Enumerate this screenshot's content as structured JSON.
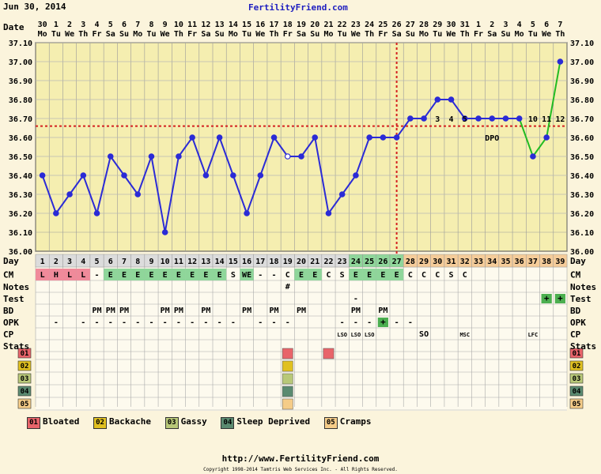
{
  "header": {
    "date": "Jun 30, 2014",
    "site": "FertilityFriend.com"
  },
  "footer": {
    "url": "http://www.FertilityFriend.com",
    "copyright": "Copyright 1998-2014 Tamtris Web Services Inc. - All Rights Reserved."
  },
  "colors": {
    "background": "#fbf4dc",
    "temp_line": "#2b2bd6",
    "post_line": "#22bb22",
    "coverline": "#d42020",
    "ovulation": "#d42020"
  },
  "row_labels": [
    "Day",
    "CM",
    "Notes",
    "Test",
    "BD",
    "OPK",
    "CP",
    "Stats"
  ],
  "days": [
    {
      "date": "30",
      "dow": "Mo"
    },
    {
      "date": "1",
      "dow": "Tu"
    },
    {
      "date": "2",
      "dow": "We"
    },
    {
      "date": "3",
      "dow": "Th"
    },
    {
      "date": "4",
      "dow": "Fr"
    },
    {
      "date": "5",
      "dow": "Sa"
    },
    {
      "date": "6",
      "dow": "Su"
    },
    {
      "date": "7",
      "dow": "Mo"
    },
    {
      "date": "8",
      "dow": "Tu"
    },
    {
      "date": "9",
      "dow": "We"
    },
    {
      "date": "10",
      "dow": "Th"
    },
    {
      "date": "11",
      "dow": "Fr"
    },
    {
      "date": "12",
      "dow": "Sa"
    },
    {
      "date": "13",
      "dow": "Su"
    },
    {
      "date": "14",
      "dow": "Mo"
    },
    {
      "date": "15",
      "dow": "Tu"
    },
    {
      "date": "16",
      "dow": "We"
    },
    {
      "date": "17",
      "dow": "Th"
    },
    {
      "date": "18",
      "dow": "Fr"
    },
    {
      "date": "19",
      "dow": "Sa"
    },
    {
      "date": "20",
      "dow": "Su"
    },
    {
      "date": "21",
      "dow": "Mo"
    },
    {
      "date": "22",
      "dow": "Tu"
    },
    {
      "date": "23",
      "dow": "We"
    },
    {
      "date": "24",
      "dow": "Th"
    },
    {
      "date": "25",
      "dow": "Fr"
    },
    {
      "date": "26",
      "dow": "Sa"
    },
    {
      "date": "27",
      "dow": "Su"
    },
    {
      "date": "28",
      "dow": "Mo"
    },
    {
      "date": "29",
      "dow": "Tu"
    },
    {
      "date": "30",
      "dow": "We"
    },
    {
      "date": "31",
      "dow": "Th"
    },
    {
      "date": "1",
      "dow": "Fr"
    },
    {
      "date": "2",
      "dow": "Sa"
    },
    {
      "date": "3",
      "dow": "Su"
    },
    {
      "date": "4",
      "dow": "Mo"
    },
    {
      "date": "5",
      "dow": "Tu"
    },
    {
      "date": "6",
      "dow": "We"
    },
    {
      "date": "7",
      "dow": "Th"
    }
  ],
  "chart_data": {
    "type": "line",
    "title": "",
    "x_axis_label": "Date",
    "ylim": [
      36.0,
      37.1
    ],
    "y_ticks": [
      "37.10",
      "37.00",
      "36.90",
      "36.80",
      "36.70",
      "36.60",
      "36.50",
      "36.40",
      "36.30",
      "36.20",
      "36.10",
      "36.00"
    ],
    "cycle_days": [
      1,
      2,
      3,
      4,
      5,
      6,
      7,
      8,
      9,
      10,
      11,
      12,
      13,
      14,
      15,
      16,
      17,
      18,
      19,
      20,
      21,
      22,
      23,
      24,
      25,
      26,
      27,
      28,
      29,
      30,
      31,
      32,
      33,
      34,
      35,
      36,
      37,
      38,
      39
    ],
    "temperatures": [
      36.4,
      36.2,
      36.3,
      36.4,
      36.2,
      36.5,
      36.4,
      36.3,
      36.5,
      36.1,
      36.5,
      36.6,
      36.4,
      36.6,
      36.4,
      36.2,
      36.4,
      36.6,
      36.5,
      36.5,
      36.6,
      36.2,
      36.3,
      36.4,
      36.6,
      36.6,
      36.6,
      36.7,
      36.7,
      36.8,
      36.8,
      36.7,
      36.7,
      36.7,
      36.7,
      36.7,
      36.5,
      36.6,
      37.0
    ],
    "open_point_days": [
      19
    ],
    "coverline": 36.66,
    "ovulation_day": 27,
    "post_line_from_day": 37,
    "dpo_label": "DPO",
    "dpo_numbers": [
      {
        "day": 30,
        "label": "3"
      },
      {
        "day": 31,
        "label": "4"
      },
      {
        "day": 32,
        "label": "5"
      },
      {
        "day": 37,
        "label": "10"
      },
      {
        "day": 38,
        "label": "11"
      },
      {
        "day": 39,
        "label": "12"
      }
    ],
    "dpo_label_day": 34
  },
  "day_row_colors": [
    "#dcdcdc",
    "#dcdcdc",
    "#dcdcdc",
    "#dcdcdc",
    "#dcdcdc",
    "#dcdcdc",
    "#dcdcdc",
    "#dcdcdc",
    "#dcdcdc",
    "#dcdcdc",
    "#dcdcdc",
    "#dcdcdc",
    "#dcdcdc",
    "#dcdcdc",
    "#dcdcdc",
    "#dcdcdc",
    "#dcdcdc",
    "#dcdcdc",
    "#dcdcdc",
    "#dcdcdc",
    "#dcdcdc",
    "#dcdcdc",
    "#dcdcdc",
    "#8fd69a",
    "#8fd69a",
    "#8fd69a",
    "#8fd69a",
    "#f5cc99",
    "#f5cc99",
    "#f5cc99",
    "#f5cc99",
    "#f5cc99",
    "#f5cc99",
    "#f5cc99",
    "#f5cc99",
    "#f5cc99",
    "#f5cc99",
    "#f5cc99",
    "#f5cc99"
  ],
  "cm": [
    "L",
    "H",
    "L",
    "L",
    "-",
    "E",
    "E",
    "E",
    "E",
    "E",
    "E",
    "E",
    "E",
    "E",
    "S",
    "WE",
    "-",
    "-",
    "C",
    "E",
    "E",
    "C",
    "S",
    "E",
    "E",
    "E",
    "E",
    "C",
    "C",
    "C",
    "S",
    "C",
    "",
    "",
    "",
    "",
    "",
    "",
    ""
  ],
  "cm_colors": {
    "L": "#f08a9a",
    "H": "#f08a9a",
    "E": "#8fd69a",
    "WE": "#8fd69a"
  },
  "notes": {
    "19": "#"
  },
  "test": {
    "24": "-",
    "38": "+",
    "39": "+"
  },
  "bd": {
    "5": "PM",
    "6": "PM",
    "7": "PM",
    "10": "PM",
    "11": "PM",
    "13": "PM",
    "16": "PM",
    "18": "PM",
    "20": "PM",
    "24": "PM",
    "26": "PM"
  },
  "opk": {
    "2": "-",
    "4": "-",
    "5": "-",
    "6": "-",
    "7": "-",
    "8": "-",
    "9": "-",
    "10": "-",
    "11": "-",
    "12": "-",
    "13": "-",
    "14": "-",
    "15": "-",
    "17": "-",
    "18": "-",
    "19": "-",
    "23": "-",
    "24": "-",
    "25": "-",
    "26": "+",
    "27": "-",
    "28": "-"
  },
  "cp": {
    "23": "LSO",
    "24": "LSO",
    "25": "LSO",
    "29": "SO",
    "32": "MSC",
    "37": "LFC"
  },
  "cp_big": [
    "SO"
  ],
  "stats_labels": [
    "01",
    "02",
    "03",
    "04",
    "05"
  ],
  "stats_colors": [
    "#e8646a",
    "#e0c020",
    "#b8c878",
    "#5a8a70",
    "#f5cc88"
  ],
  "stats_marks": [
    {
      "day": 19,
      "row": 0
    },
    {
      "day": 22,
      "row": 0
    },
    {
      "day": 19,
      "row": 1
    },
    {
      "day": 19,
      "row": 2
    },
    {
      "day": 19,
      "row": 3
    },
    {
      "day": 19,
      "row": 4
    }
  ],
  "legend": [
    {
      "code": "01",
      "label": "Bloated",
      "color": "#e8646a"
    },
    {
      "code": "02",
      "label": "Backache",
      "color": "#e0c020"
    },
    {
      "code": "03",
      "label": "Gassy",
      "color": "#b8c878"
    },
    {
      "code": "04",
      "label": "Sleep Deprived",
      "color": "#5a8a70"
    },
    {
      "code": "05",
      "label": "Cramps",
      "color": "#f5cc88"
    }
  ]
}
